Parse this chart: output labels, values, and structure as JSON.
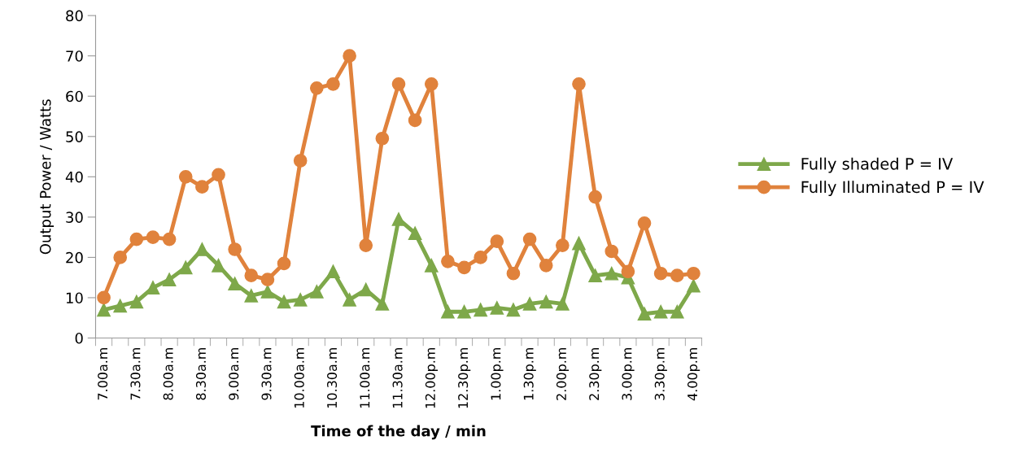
{
  "chart_data": {
    "type": "line",
    "xlabel": "Time of the day / min",
    "ylabel": "Output Power / Watts",
    "categories": [
      "7.00a.m",
      null,
      "7.30a.m",
      null,
      "8.00a.m",
      null,
      "8.30a.m",
      null,
      "9.00a.m",
      null,
      "9.30a.m",
      null,
      "10.00a.m",
      null,
      "10.30a.m",
      null,
      "11.00a.m",
      null,
      "11.30a.m",
      null,
      "12.00p.m",
      null,
      "12.30p.m",
      null,
      "1.00p.m",
      null,
      "1.30p.m",
      null,
      "2.00p.m",
      null,
      "2.30p.m",
      null,
      "3.00p.m",
      null,
      "3.30p.m",
      null,
      "4.00p.m"
    ],
    "series": [
      {
        "name": "Fully shaded P = IV",
        "color": "#7ea84a",
        "marker": "triangle",
        "values": [
          7,
          8,
          9,
          12.5,
          14.5,
          17.5,
          22,
          18,
          13.5,
          10.5,
          11.5,
          9,
          9.5,
          11.5,
          16.5,
          9.5,
          12,
          8.5,
          29.5,
          26,
          18,
          6.5,
          6.5,
          7,
          7.5,
          7,
          8.5,
          9,
          8.5,
          23.5,
          15.5,
          16,
          15,
          6,
          6.5,
          6.5,
          13
        ]
      },
      {
        "name": "Fully Illuminated P = IV",
        "color": "#e0823c",
        "marker": "circle",
        "values": [
          10,
          20,
          24.5,
          25,
          24.5,
          40,
          37.5,
          40.5,
          22,
          15.5,
          14.5,
          18.5,
          44,
          62,
          63,
          70,
          23,
          49.5,
          63,
          54,
          63,
          19,
          17.5,
          20,
          24,
          16,
          24.5,
          18,
          23,
          63,
          35,
          21.5,
          16.5,
          28.5,
          16,
          15.5,
          16
        ]
      }
    ],
    "ylim": [
      0,
      80
    ],
    "yticks": [
      0,
      10,
      20,
      30,
      40,
      50,
      60,
      70,
      80
    ],
    "grid": false,
    "legend": "right",
    "line_style": "solid"
  }
}
